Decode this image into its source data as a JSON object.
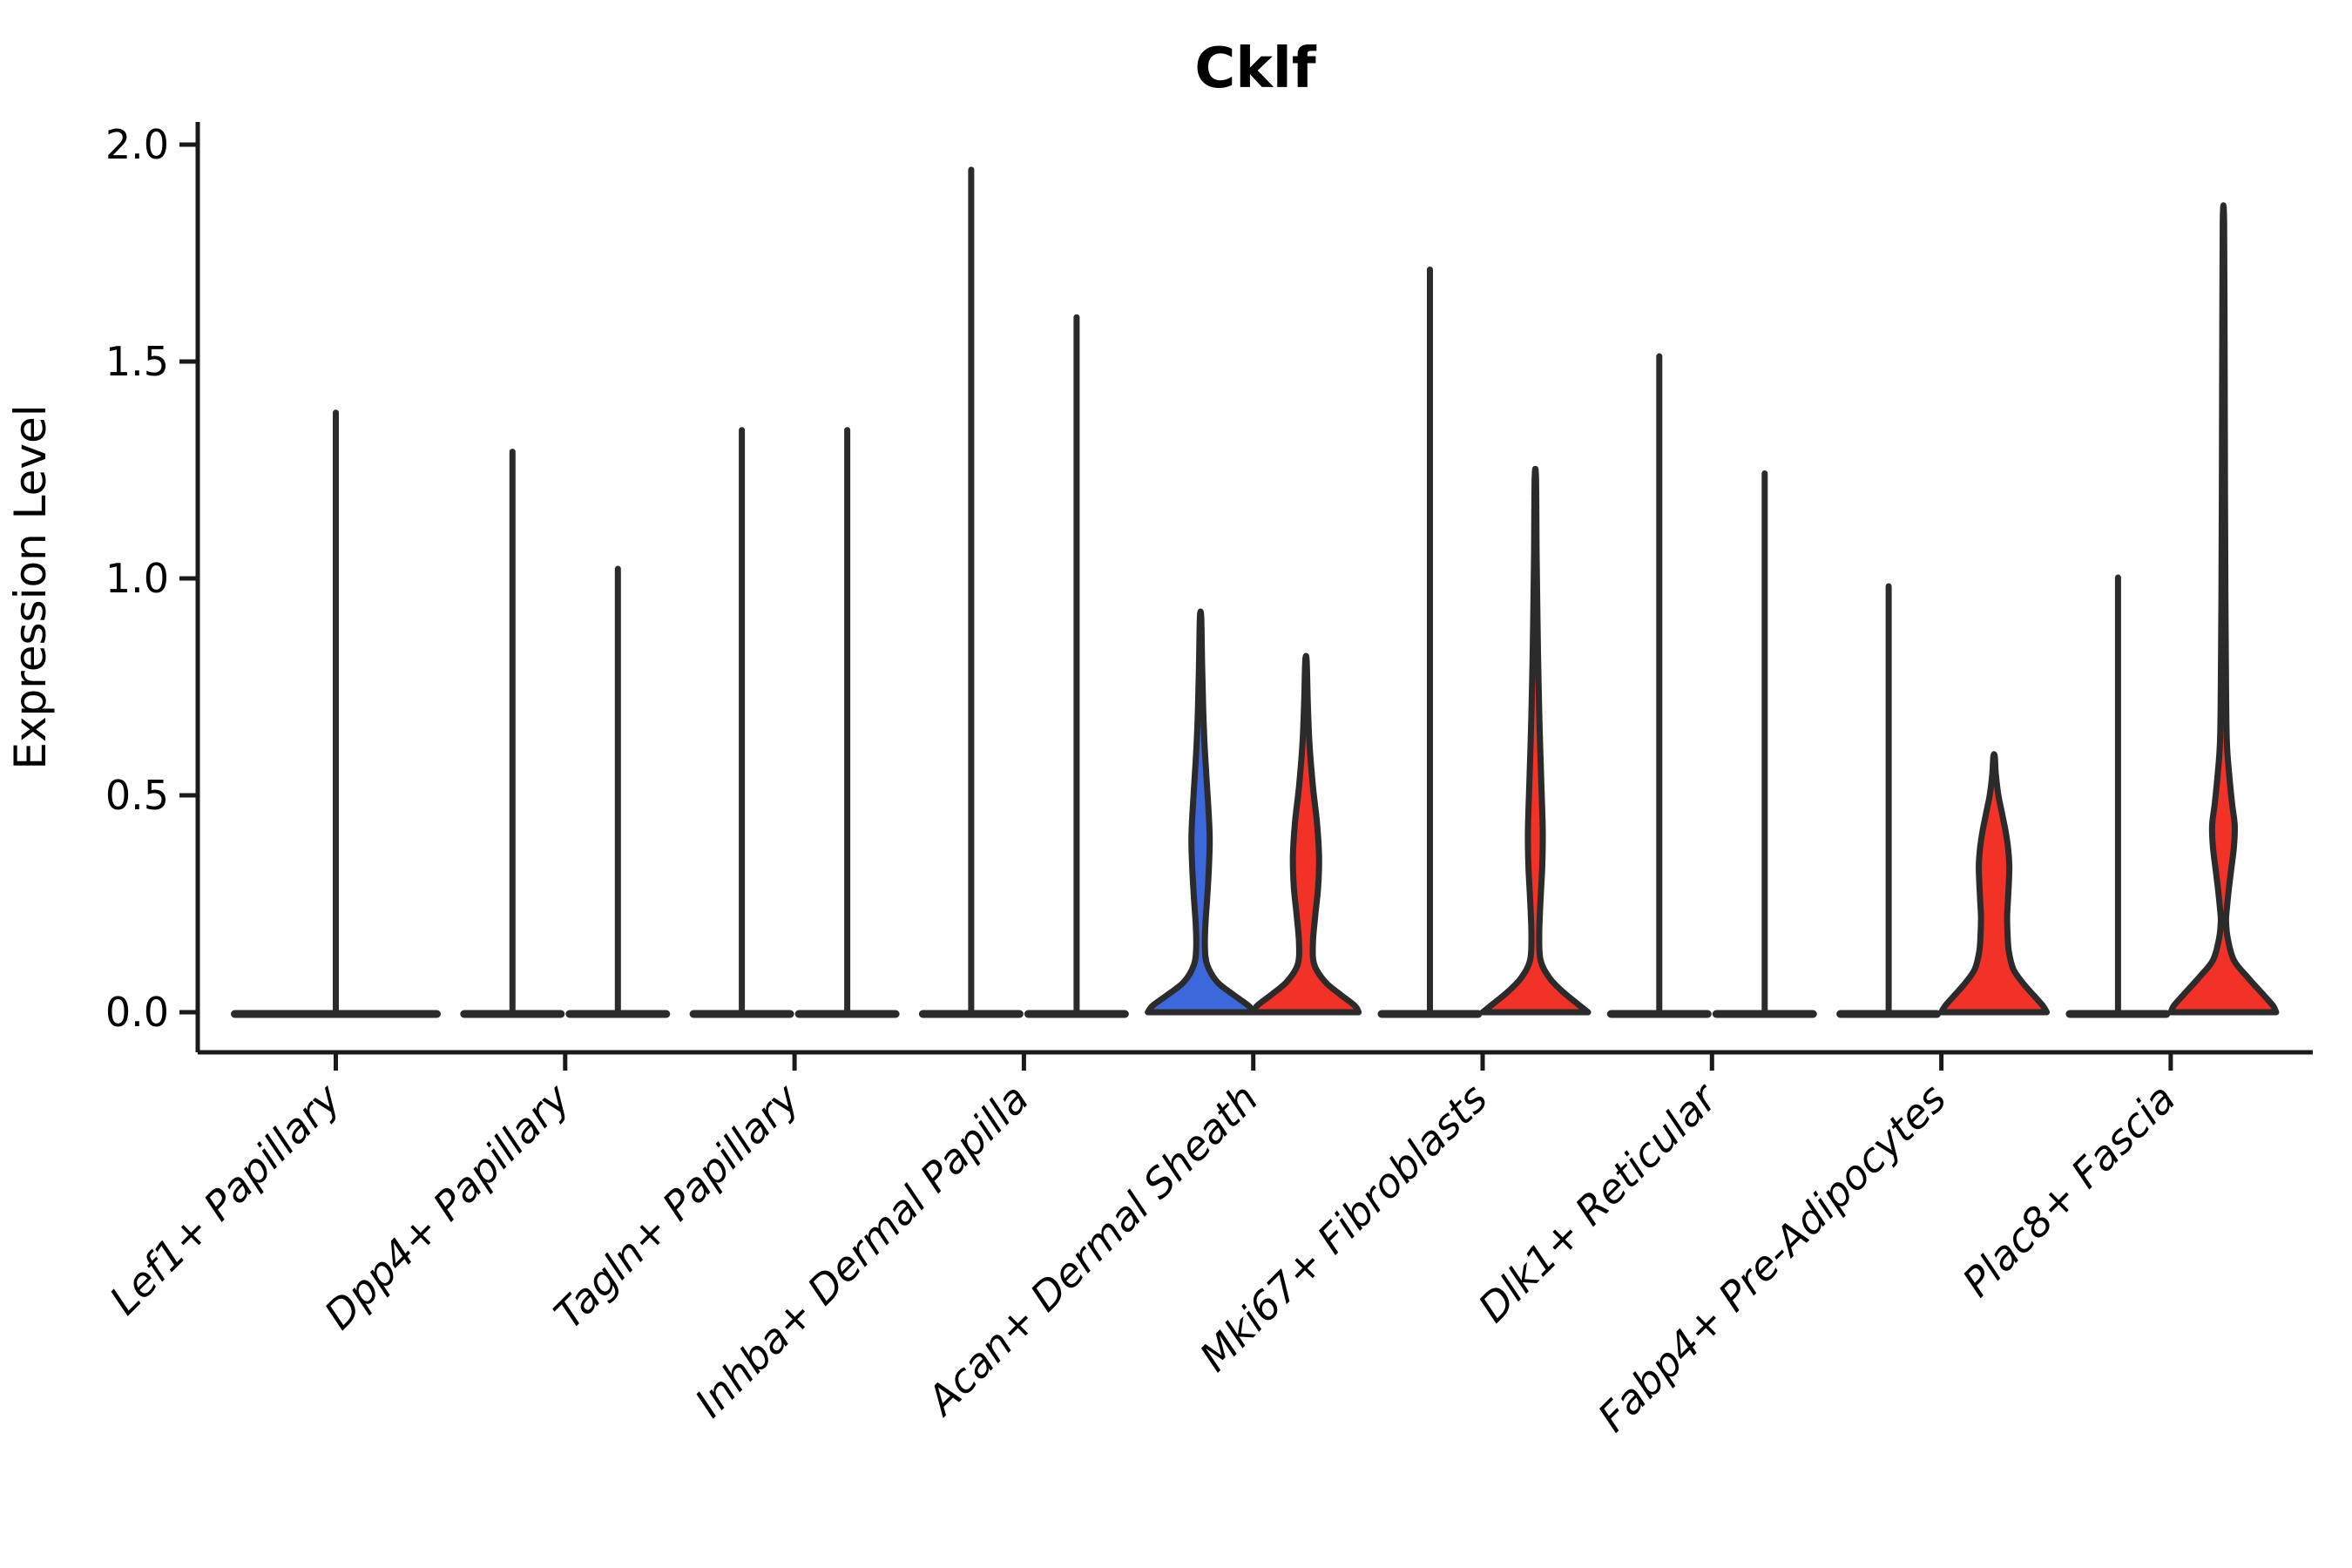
{
  "chart_data": {
    "type": "violin",
    "title": "Cklf",
    "xlabel": "",
    "ylabel": "Expression Level",
    "ylim": [
      0.0,
      2.05
    ],
    "yticks": [
      0.0,
      0.5,
      1.0,
      1.5,
      2.0
    ],
    "ytick_labels": [
      "0.0",
      "0.5",
      "1.0",
      "1.5",
      "2.0"
    ],
    "grid": false,
    "legend_position": "none",
    "categories": [
      "Lef1+ Papillary",
      "Dpp4+ Papillary",
      "Tagln+ Papillary",
      "Inhba+ Dermal Papilla",
      "Acan+ Dermal Sheath",
      "Mki67+ Fibroblasts",
      "Dlk1+ Reticular",
      "Fabp4+ Pre-Adipocytes",
      "Plac8+ Fascia"
    ],
    "colors": {
      "blue": "#3C68DC",
      "red": "#F23127",
      "outline": "#2B2B2B",
      "axis": "#1A1A1A"
    },
    "groups": [
      {
        "category": "Lef1+ Papillary",
        "violins": [
          {
            "side": "single",
            "fill": null,
            "max": 1.39
          }
        ]
      },
      {
        "category": "Dpp4+ Papillary",
        "violins": [
          {
            "side": "left",
            "fill": null,
            "max": 1.3
          },
          {
            "side": "right",
            "fill": null,
            "max": 1.03
          }
        ]
      },
      {
        "category": "Tagln+ Papillary",
        "violins": [
          {
            "side": "left",
            "fill": null,
            "max": 1.35
          },
          {
            "side": "right",
            "fill": null,
            "max": 1.35
          }
        ]
      },
      {
        "category": "Inhba+ Dermal Papilla",
        "violins": [
          {
            "side": "left",
            "fill": null,
            "max": 1.95
          },
          {
            "side": "right",
            "fill": null,
            "max": 1.61
          }
        ]
      },
      {
        "category": "Acan+ Dermal Sheath",
        "violins": [
          {
            "side": "left",
            "fill": "blue",
            "max": 0.91,
            "profile": [
              [
                0.91,
                0.8
              ],
              [
                0.8,
                1.8
              ],
              [
                0.7,
                3.0
              ],
              [
                0.62,
                4.5
              ],
              [
                0.55,
                6.5
              ],
              [
                0.47,
                9.0
              ],
              [
                0.4,
                10.5
              ],
              [
                0.33,
                9.5
              ],
              [
                0.26,
                7.5
              ],
              [
                0.2,
                5.5
              ],
              [
                0.15,
                5.0
              ],
              [
                0.11,
                7.5
              ],
              [
                0.07,
                19.0
              ],
              [
                0.04,
                38.0
              ],
              [
                0.015,
                55.0
              ],
              [
                0.0,
                60.5
              ]
            ]
          },
          {
            "side": "right",
            "fill": "red",
            "max": 0.81,
            "profile": [
              [
                0.81,
                0.8
              ],
              [
                0.72,
                2.0
              ],
              [
                0.62,
                4.0
              ],
              [
                0.52,
                8.0
              ],
              [
                0.44,
                12.5
              ],
              [
                0.36,
                15.0
              ],
              [
                0.29,
                14.0
              ],
              [
                0.22,
                10.5
              ],
              [
                0.16,
                8.0
              ],
              [
                0.11,
                9.5
              ],
              [
                0.07,
                22.0
              ],
              [
                0.04,
                40.0
              ],
              [
                0.015,
                56.0
              ],
              [
                0.0,
                60.5
              ]
            ]
          }
        ]
      },
      {
        "category": "Mki67+ Fibroblasts",
        "violins": [
          {
            "side": "left",
            "fill": null,
            "max": 1.72
          },
          {
            "side": "right",
            "fill": "red",
            "max": 1.23,
            "profile": [
              [
                1.23,
                0.8
              ],
              [
                1.05,
                1.5
              ],
              [
                0.9,
                2.5
              ],
              [
                0.78,
                3.5
              ],
              [
                0.65,
                5.0
              ],
              [
                0.52,
                7.0
              ],
              [
                0.42,
                8.5
              ],
              [
                0.34,
                8.0
              ],
              [
                0.26,
                6.0
              ],
              [
                0.18,
                4.5
              ],
              [
                0.12,
                6.0
              ],
              [
                0.08,
                16.0
              ],
              [
                0.05,
                30.0
              ],
              [
                0.02,
                48.0
              ],
              [
                0.0,
                60.5
              ]
            ]
          }
        ]
      },
      {
        "category": "Dlk1+ Reticular",
        "violins": [
          {
            "side": "left",
            "fill": null,
            "max": 1.52
          },
          {
            "side": "right",
            "fill": null,
            "max": 1.25
          }
        ]
      },
      {
        "category": "Fabp4+ Pre-Adipocytes",
        "violins": [
          {
            "side": "left",
            "fill": null,
            "max": 0.99
          },
          {
            "side": "right",
            "fill": "red",
            "max": 0.59,
            "profile": [
              [
                0.59,
                0.8
              ],
              [
                0.55,
                2.0
              ],
              [
                0.5,
                5.0
              ],
              [
                0.46,
                9.0
              ],
              [
                0.42,
                13.0
              ],
              [
                0.38,
                16.0
              ],
              [
                0.34,
                17.5
              ],
              [
                0.3,
                17.0
              ],
              [
                0.26,
                16.0
              ],
              [
                0.22,
                15.0
              ],
              [
                0.18,
                15.5
              ],
              [
                0.14,
                17.0
              ],
              [
                0.1,
                22.0
              ],
              [
                0.07,
                32.0
              ],
              [
                0.04,
                45.0
              ],
              [
                0.015,
                56.0
              ],
              [
                0.0,
                60.5
              ]
            ]
          }
        ]
      },
      {
        "category": "Plac8+ Fascia",
        "violins": [
          {
            "side": "left",
            "fill": null,
            "max": 1.01
          },
          {
            "side": "right",
            "fill": "red",
            "max": 1.82,
            "profile": [
              [
                1.82,
                0.8
              ],
              [
                1.5,
                1.4
              ],
              [
                1.2,
                1.8
              ],
              [
                0.95,
                2.3
              ],
              [
                0.75,
                3.0
              ],
              [
                0.62,
                4.0
              ],
              [
                0.54,
                7.0
              ],
              [
                0.48,
                10.0
              ],
              [
                0.43,
                13.0
              ],
              [
                0.38,
                12.0
              ],
              [
                0.33,
                9.0
              ],
              [
                0.28,
                6.0
              ],
              [
                0.24,
                4.0
              ],
              [
                0.21,
                3.0
              ],
              [
                0.17,
                5.0
              ],
              [
                0.12,
                12.0
              ],
              [
                0.08,
                28.0
              ],
              [
                0.04,
                46.0
              ],
              [
                0.015,
                57.0
              ],
              [
                0.0,
                60.5
              ]
            ]
          }
        ]
      }
    ]
  }
}
